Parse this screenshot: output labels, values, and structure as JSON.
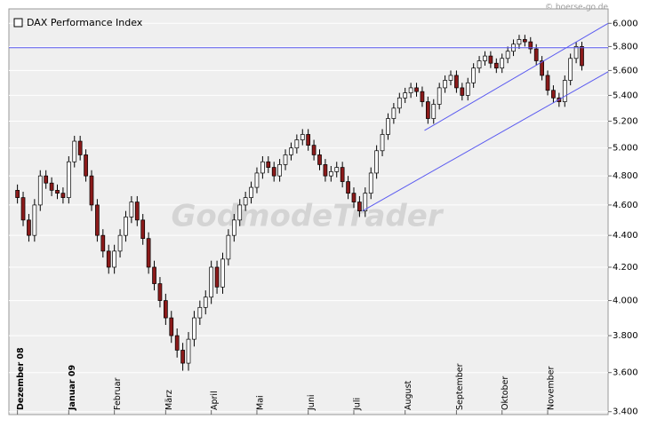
{
  "chart_data": {
    "type": "candlestick",
    "title": "DAX Performance Index",
    "source": "© boerse-go.de",
    "watermark": "GodmodeTrader",
    "categories": [
      "Dezember 08",
      null,
      null,
      null,
      null,
      null,
      null,
      null,
      null,
      "Januar 09",
      null,
      null,
      null,
      null,
      null,
      null,
      null,
      "Februar",
      null,
      null,
      null,
      null,
      null,
      null,
      null,
      null,
      "März",
      null,
      null,
      null,
      null,
      null,
      null,
      null,
      "April",
      null,
      null,
      null,
      null,
      null,
      null,
      null,
      "Mai",
      null,
      null,
      null,
      null,
      null,
      null,
      null,
      null,
      "Juni",
      null,
      null,
      null,
      null,
      null,
      null,
      null,
      "Juli",
      null,
      null,
      null,
      null,
      null,
      null,
      null,
      null,
      "August",
      null,
      null,
      null,
      null,
      null,
      null,
      null,
      null,
      "September",
      null,
      null,
      null,
      null,
      null,
      null,
      null,
      "Oktober",
      null,
      null,
      null,
      null,
      null,
      null,
      null,
      "November",
      null,
      null,
      null,
      null,
      null,
      null
    ],
    "open": [
      4700,
      4650,
      4500,
      4400,
      4600,
      4800,
      4750,
      4700,
      4680,
      4650,
      4900,
      5050,
      4950,
      4800,
      4600,
      4400,
      4300,
      4200,
      4300,
      4400,
      4520,
      4620,
      4500,
      4380,
      4200,
      4100,
      4000,
      3900,
      3800,
      3720,
      3650,
      3780,
      3900,
      3960,
      4020,
      4200,
      4080,
      4250,
      4400,
      4500,
      4600,
      4650,
      4720,
      4820,
      4900,
      4860,
      4800,
      4880,
      4950,
      5000,
      5060,
      5100,
      5020,
      4950,
      4880,
      4800,
      4830,
      4860,
      4760,
      4680,
      4620,
      4560,
      4680,
      4820,
      4980,
      5100,
      5220,
      5300,
      5380,
      5420,
      5460,
      5430,
      5350,
      5220,
      5330,
      5460,
      5520,
      5560,
      5460,
      5400,
      5500,
      5620,
      5680,
      5720,
      5660,
      5620,
      5700,
      5760,
      5820,
      5860,
      5840,
      5780,
      5680,
      5560,
      5440,
      5380,
      5350,
      5520,
      5700,
      5800
    ],
    "high": [
      4740,
      4690,
      4540,
      4640,
      4840,
      4840,
      4790,
      4740,
      4720,
      4940,
      5090,
      5090,
      4990,
      4840,
      4640,
      4440,
      4340,
      4340,
      4440,
      4560,
      4660,
      4660,
      4540,
      4420,
      4240,
      4140,
      4040,
      3940,
      3840,
      3760,
      3820,
      3940,
      4000,
      4060,
      4240,
      4240,
      4290,
      4440,
      4540,
      4640,
      4690,
      4760,
      4860,
      4940,
      4940,
      4900,
      4920,
      4990,
      5040,
      5100,
      5140,
      5140,
      5060,
      4990,
      4920,
      4870,
      4900,
      4900,
      4800,
      4720,
      4660,
      4720,
      4860,
      5020,
      5140,
      5260,
      5340,
      5420,
      5460,
      5500,
      5500,
      5470,
      5390,
      5370,
      5500,
      5560,
      5600,
      5600,
      5500,
      5540,
      5660,
      5720,
      5760,
      5760,
      5700,
      5740,
      5800,
      5860,
      5900,
      5900,
      5880,
      5820,
      5720,
      5600,
      5480,
      5420,
      5560,
      5740,
      5840,
      5840
    ],
    "low": [
      4610,
      4460,
      4360,
      4360,
      4560,
      4710,
      4660,
      4640,
      4610,
      4610,
      4860,
      4910,
      4760,
      4560,
      4360,
      4260,
      4160,
      4160,
      4260,
      4360,
      4480,
      4460,
      4340,
      4160,
      4060,
      3960,
      3860,
      3760,
      3680,
      3610,
      3610,
      3740,
      3860,
      3920,
      3980,
      4040,
      4040,
      4210,
      4360,
      4460,
      4560,
      4610,
      4680,
      4780,
      4820,
      4760,
      4760,
      4840,
      4910,
      4960,
      5020,
      4980,
      4910,
      4840,
      4760,
      4760,
      4790,
      4720,
      4640,
      4580,
      4520,
      4520,
      4640,
      4780,
      4940,
      5060,
      5180,
      5260,
      5340,
      5380,
      5390,
      5310,
      5180,
      5180,
      5290,
      5420,
      5480,
      5420,
      5360,
      5360,
      5460,
      5580,
      5640,
      5620,
      5580,
      5580,
      5660,
      5720,
      5780,
      5800,
      5740,
      5640,
      5520,
      5400,
      5340,
      5310,
      5310,
      5480,
      5660,
      5600
    ],
    "close": [
      4650,
      4500,
      4400,
      4600,
      4800,
      4750,
      4700,
      4680,
      4650,
      4900,
      5050,
      4950,
      4800,
      4600,
      4400,
      4300,
      4200,
      4300,
      4400,
      4520,
      4620,
      4500,
      4380,
      4200,
      4100,
      4000,
      3900,
      3800,
      3720,
      3650,
      3780,
      3900,
      3960,
      4020,
      4200,
      4080,
      4250,
      4400,
      4500,
      4600,
      4650,
      4720,
      4820,
      4900,
      4860,
      4800,
      4880,
      4950,
      5000,
      5060,
      5100,
      5020,
      4950,
      4880,
      4800,
      4830,
      4860,
      4760,
      4680,
      4620,
      4560,
      4680,
      4820,
      4980,
      5100,
      5220,
      5300,
      5380,
      5420,
      5460,
      5430,
      5350,
      5220,
      5330,
      5460,
      5520,
      5560,
      5460,
      5400,
      5500,
      5620,
      5680,
      5720,
      5660,
      5620,
      5700,
      5760,
      5820,
      5860,
      5840,
      5780,
      5680,
      5560,
      5440,
      5380,
      5350,
      5520,
      5700,
      5800,
      5640
    ],
    "up_color": "#ffffff",
    "down_color": "#8b1a1a",
    "line_color": "#5a5af0",
    "lines": [
      {
        "from": [
          -1.5,
          5790
        ],
        "to": [
          103.6,
          5790
        ]
      },
      {
        "from": [
          71.4,
          5130
        ],
        "to": [
          103.6,
          6000
        ]
      },
      {
        "from": [
          60.5,
          4560
        ],
        "to": [
          103.6,
          5590
        ]
      }
    ],
    "xlim": [
      -1.5,
      103.6
    ],
    "ylim": [
      3390,
      6010
    ],
    "log_scale": true,
    "grid": true,
    "yticks": [
      {
        "value": 3400,
        "label": "3.400"
      },
      {
        "value": 3600,
        "label": "3.600"
      },
      {
        "value": 3800,
        "label": "3.800"
      },
      {
        "value": 4000,
        "label": "4.000"
      },
      {
        "value": 4200,
        "label": "4.200"
      },
      {
        "value": 4400,
        "label": "4.400"
      },
      {
        "value": 4600,
        "label": "4.600"
      },
      {
        "value": 4800,
        "label": "4.800"
      },
      {
        "value": 5000,
        "label": "5.000"
      },
      {
        "value": 5200,
        "label": "5.200"
      },
      {
        "value": 5400,
        "label": "5.400"
      },
      {
        "value": 5600,
        "label": "5.600"
      },
      {
        "value": 5800,
        "label": "5.800"
      },
      {
        "value": 6000,
        "label": "6.000"
      }
    ]
  }
}
